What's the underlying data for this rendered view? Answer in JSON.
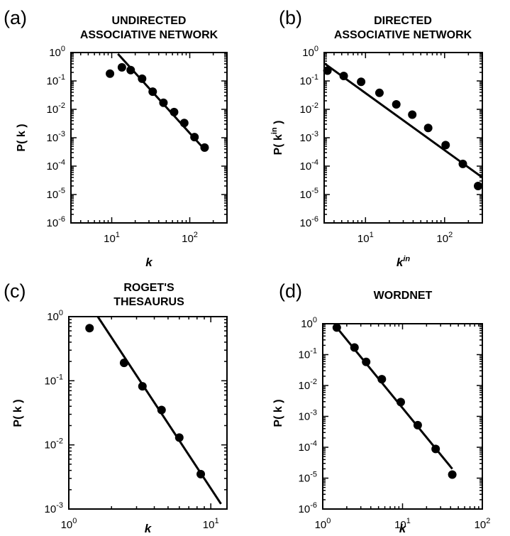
{
  "chart_data": [
    {
      "panel": "(a)",
      "type": "scatter",
      "title": [
        "UNDIRECTED",
        "ASSOCIATIVE NETWORK"
      ],
      "xlabel": "k",
      "ylabel": "P( k )",
      "xscale": "log",
      "yscale": "log",
      "xlim": [
        3,
        300
      ],
      "ylim": [
        1e-06,
        1
      ],
      "x_ticks": [
        {
          "value": 10,
          "base": "10",
          "exp": "1"
        },
        {
          "value": 100,
          "base": "10",
          "exp": "2"
        }
      ],
      "y_ticks": [
        {
          "value": 1,
          "base": "10",
          "exp": "0"
        },
        {
          "value": 0.1,
          "base": "10",
          "exp": "-1"
        },
        {
          "value": 0.01,
          "base": "10",
          "exp": "-2"
        },
        {
          "value": 0.001,
          "base": "10",
          "exp": "-3"
        },
        {
          "value": 0.0001,
          "base": "10",
          "exp": "-4"
        },
        {
          "value": 1e-05,
          "base": "10",
          "exp": "-5"
        },
        {
          "value": 1e-06,
          "base": "10",
          "exp": "-6"
        }
      ],
      "series": [
        {
          "x": [
            9.5,
            13.5,
            17.5,
            24.5,
            33.5,
            46,
            63,
            85,
            115,
            155
          ],
          "y": [
            0.18,
            0.3,
            0.24,
            0.12,
            0.042,
            0.017,
            0.008,
            0.0033,
            0.00105,
            0.00045
          ]
        }
      ],
      "fit_line": {
        "x": [
          12,
          160
        ],
        "y": [
          0.9,
          0.00035
        ]
      },
      "grid": false
    },
    {
      "panel": "(b)",
      "type": "scatter",
      "title": [
        "DIRECTED",
        "ASSOCIATIVE NETWORK"
      ],
      "xlabel": "k^in",
      "ylabel": "P( k^in )",
      "xscale": "log",
      "yscale": "log",
      "xlim": [
        3,
        300
      ],
      "ylim": [
        1e-06,
        1
      ],
      "x_ticks": [
        {
          "value": 10,
          "base": "10",
          "exp": "1"
        },
        {
          "value": 100,
          "base": "10",
          "exp": "2"
        }
      ],
      "y_ticks": [
        {
          "value": 1,
          "base": "10",
          "exp": "0"
        },
        {
          "value": 0.1,
          "base": "10",
          "exp": "-1"
        },
        {
          "value": 0.01,
          "base": "10",
          "exp": "-2"
        },
        {
          "value": 0.001,
          "base": "10",
          "exp": "-3"
        },
        {
          "value": 0.0001,
          "base": "10",
          "exp": "-4"
        },
        {
          "value": 1e-05,
          "base": "10",
          "exp": "-5"
        },
        {
          "value": 1e-06,
          "base": "10",
          "exp": "-6"
        }
      ],
      "series": [
        {
          "x": [
            3.3,
            5.3,
            8.8,
            15,
            24.5,
            39,
            62,
            103,
            170,
            265
          ],
          "y": [
            0.23,
            0.15,
            0.093,
            0.038,
            0.015,
            0.0065,
            0.0022,
            0.00055,
            0.00012,
            2e-05
          ]
        }
      ],
      "fit_line": {
        "x": [
          3,
          300
        ],
        "y": [
          0.42,
          4e-05
        ]
      },
      "grid": false
    },
    {
      "panel": "(c)",
      "type": "scatter",
      "title": [
        "ROGET'S",
        "THESAURUS"
      ],
      "xlabel": "k",
      "ylabel": "P( k )",
      "xscale": "log",
      "yscale": "log",
      "xlim": [
        1,
        13
      ],
      "ylim": [
        0.001,
        1
      ],
      "x_ticks": [
        {
          "value": 1,
          "base": "10",
          "exp": "0"
        },
        {
          "value": 10,
          "base": "10",
          "exp": "1"
        }
      ],
      "y_ticks": [
        {
          "value": 1,
          "base": "10",
          "exp": "0"
        },
        {
          "value": 0.1,
          "base": "10",
          "exp": "-1"
        },
        {
          "value": 0.01,
          "base": "10",
          "exp": "-2"
        },
        {
          "value": 0.001,
          "base": "10",
          "exp": "-3"
        }
      ],
      "series": [
        {
          "x": [
            1.4,
            2.45,
            3.3,
            4.5,
            6.0,
            8.5
          ],
          "y": [
            0.66,
            0.19,
            0.082,
            0.035,
            0.013,
            0.0035
          ]
        }
      ],
      "fit_line": {
        "x": [
          1.6,
          11.8
        ],
        "y": [
          1.0,
          0.0012
        ]
      },
      "grid": false
    },
    {
      "panel": "(d)",
      "type": "scatter",
      "title": [
        "WORDNET"
      ],
      "xlabel": "k",
      "ylabel": "P( k )",
      "xscale": "log",
      "yscale": "log",
      "xlim": [
        1,
        100
      ],
      "ylim": [
        1e-06,
        1
      ],
      "x_ticks": [
        {
          "value": 1,
          "base": "10",
          "exp": "0"
        },
        {
          "value": 10,
          "base": "10",
          "exp": "1"
        },
        {
          "value": 100,
          "base": "10",
          "exp": "2"
        }
      ],
      "y_ticks": [
        {
          "value": 1,
          "base": "10",
          "exp": "0"
        },
        {
          "value": 0.1,
          "base": "10",
          "exp": "-1"
        },
        {
          "value": 0.01,
          "base": "10",
          "exp": "-2"
        },
        {
          "value": 0.001,
          "base": "10",
          "exp": "-3"
        },
        {
          "value": 0.0001,
          "base": "10",
          "exp": "-4"
        },
        {
          "value": 1e-05,
          "base": "10",
          "exp": "-5"
        },
        {
          "value": 1e-06,
          "base": "10",
          "exp": "-6"
        }
      ],
      "series": [
        {
          "x": [
            1.5,
            2.5,
            3.5,
            5.5,
            9.5,
            15.5,
            26,
            42
          ],
          "y": [
            0.75,
            0.17,
            0.058,
            0.016,
            0.0029,
            0.00052,
            8.8e-05,
            1.3e-05
          ]
        }
      ],
      "fit_line": {
        "x": [
          1.5,
          42
        ],
        "y": [
          0.75,
          2e-05
        ]
      },
      "grid": false
    }
  ]
}
